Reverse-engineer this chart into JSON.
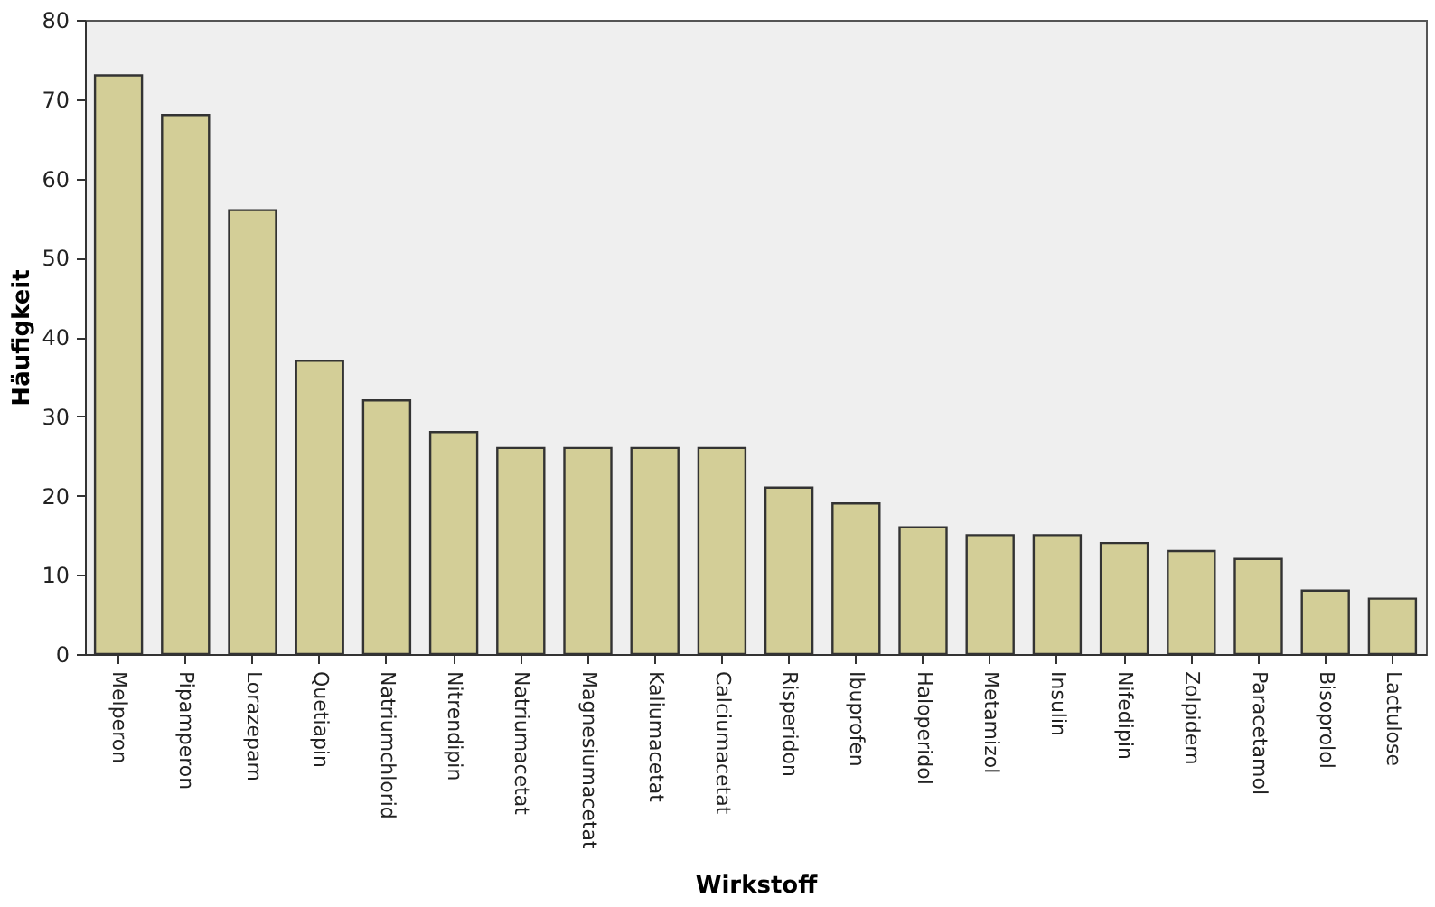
{
  "chart_data": {
    "type": "bar",
    "xlabel": "Wirkstoff",
    "ylabel": "Häufigkeit",
    "categories": [
      "Melperon",
      "Pipamperon",
      "Lorazepam",
      "Quetiapin",
      "Natriumchlorid",
      "Nitrendipin",
      "Natriumacetat",
      "Magnesiumacetat",
      "Kaliumacetat",
      "Calciumacetat",
      "Risperidon",
      "Ibuprofen",
      "Haloperidol",
      "Metamizol",
      "Insulin",
      "Nifedipin",
      "Zolpidem",
      "Paracetamol",
      "Bisoprolol",
      "Lactulose"
    ],
    "values": [
      73,
      68,
      56,
      37,
      32,
      28,
      26,
      26,
      26,
      26,
      21,
      19,
      16,
      15,
      15,
      14,
      13,
      12,
      8,
      7
    ],
    "color": "#d3ce97",
    "ylim": [
      0,
      80
    ],
    "yticks": [
      0,
      10,
      20,
      30,
      40,
      50,
      60,
      70,
      80
    ],
    "grid": false
  }
}
